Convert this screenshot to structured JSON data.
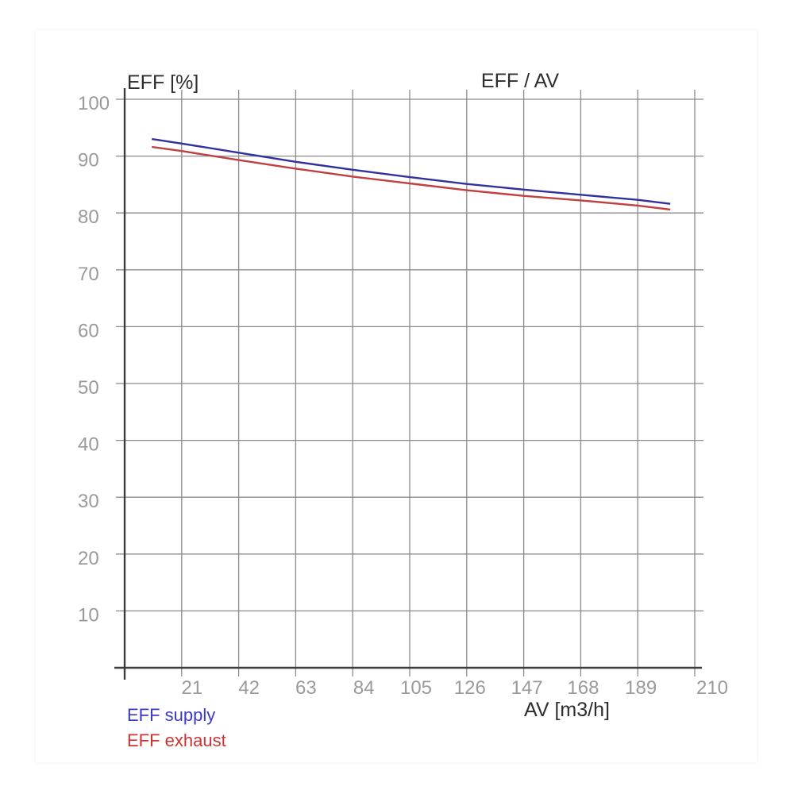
{
  "page": {
    "background": "#ffffff"
  },
  "colors": {
    "grid": "#8b8b8b",
    "axis": "#3d3d3d",
    "tick_label": "#9a9a9a",
    "text": "#2e2e2e",
    "supply_line": "#31319e",
    "exhaust_line": "#c04040",
    "supply_legend": "#3b3bc0",
    "exhaust_legend": "#cc3333"
  },
  "chart_data": {
    "type": "line",
    "title": "EFF / AV",
    "ylabel": "EFF [%]",
    "xlabel": "AV [m3/h]",
    "xlim": [
      0,
      210
    ],
    "ylim": [
      0,
      100
    ],
    "grid": true,
    "legend_position": "bottom-left",
    "x_tick_labels": [
      "21",
      "42",
      "63",
      "84",
      "105",
      "126",
      "147",
      "168",
      "189",
      "210"
    ],
    "x_tick_values": [
      21,
      42,
      63,
      84,
      105,
      126,
      147,
      168,
      189,
      210
    ],
    "y_tick_labels": [
      "10",
      "20",
      "30",
      "40",
      "50",
      "60",
      "70",
      "80",
      "90",
      "100"
    ],
    "y_tick_values": [
      10,
      20,
      30,
      40,
      50,
      60,
      70,
      80,
      90,
      100
    ],
    "x": [
      10,
      21,
      42,
      63,
      84,
      105,
      126,
      147,
      168,
      189,
      201
    ],
    "series": [
      {
        "name": "EFF supply",
        "color": "#31319e",
        "values": [
          93.0,
          92.2,
          90.6,
          89.0,
          87.6,
          86.3,
          85.1,
          84.1,
          83.2,
          82.3,
          81.6
        ]
      },
      {
        "name": "EFF exhaust",
        "color": "#c04040",
        "values": [
          91.6,
          90.9,
          89.3,
          87.8,
          86.4,
          85.2,
          84.0,
          83.0,
          82.2,
          81.3,
          80.6
        ]
      }
    ],
    "legend": [
      {
        "label": "EFF supply",
        "color": "#3b3bc0"
      },
      {
        "label": "EFF exhaust",
        "color": "#cc3333"
      }
    ]
  }
}
